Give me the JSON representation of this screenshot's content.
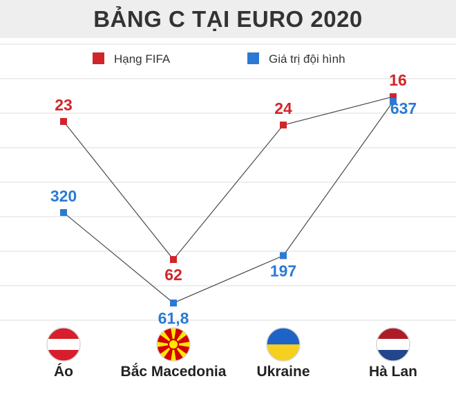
{
  "chart_data": {
    "type": "line",
    "title": "BẢNG C TẠI EURO 2020",
    "categories": [
      "Áo",
      "Bắc Macedonia",
      "Ukraine",
      "Hà Lan"
    ],
    "series": [
      {
        "name": "Hạng FIFA",
        "color": "#d0252b",
        "values": [
          23,
          62,
          24,
          16
        ],
        "labels": [
          "23",
          "62",
          "24",
          "16"
        ]
      },
      {
        "name": "Giá trị đội hình",
        "color": "#2a7ad4",
        "values": [
          320,
          61.8,
          197,
          637
        ],
        "labels": [
          "320",
          "61,8",
          "197",
          "637"
        ]
      }
    ],
    "legend": "top",
    "grid": true,
    "flags": [
      "austria-flag",
      "north-macedonia-flag",
      "ukraine-flag",
      "netherlands-flag"
    ]
  }
}
